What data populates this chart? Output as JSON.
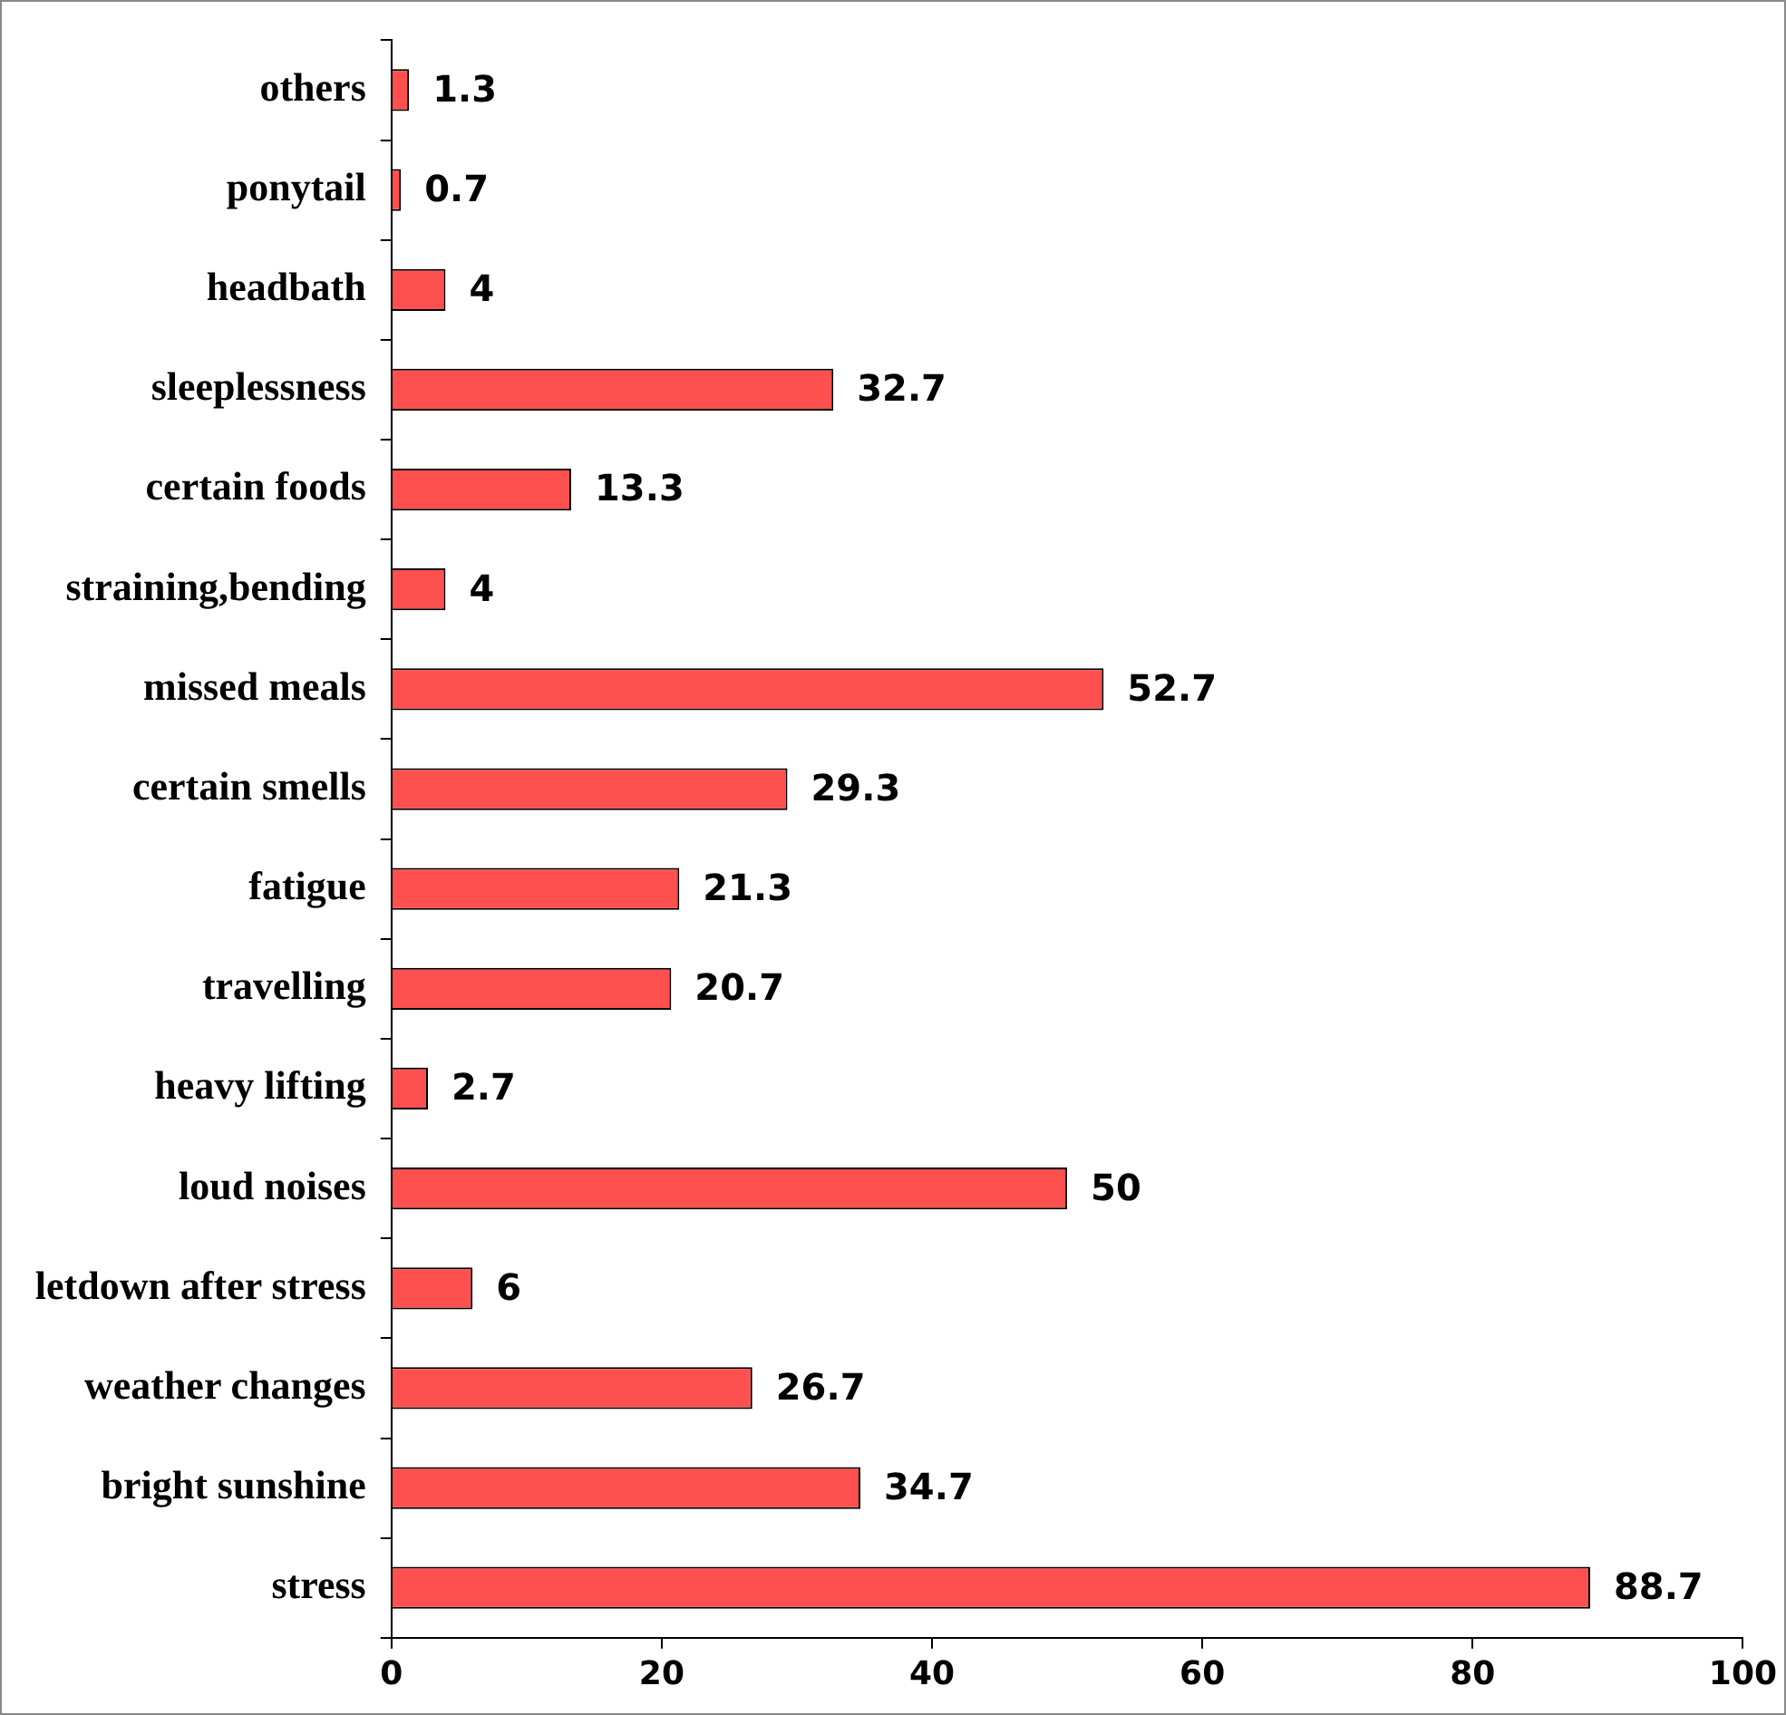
{
  "chart_data": {
    "type": "bar",
    "orientation": "horizontal",
    "categories": [
      "others",
      "ponytail",
      "headbath",
      "sleeplessness",
      "certain foods",
      "straining,bending",
      "missed meals",
      "certain smells",
      "fatigue",
      "travelling",
      "heavy lifting",
      "loud noises",
      "letdown after stress",
      "weather changes",
      "bright sunshine",
      "stress"
    ],
    "values": [
      1.3,
      0.7,
      4,
      32.7,
      13.3,
      4,
      52.7,
      29.3,
      21.3,
      20.7,
      2.7,
      50,
      6,
      26.7,
      34.7,
      88.7
    ],
    "color": "#ff5050",
    "xlim": [
      0,
      100
    ],
    "xticks": [
      0,
      20,
      40,
      60,
      80,
      100
    ],
    "grid": false,
    "legend": false,
    "data_labels": true
  }
}
